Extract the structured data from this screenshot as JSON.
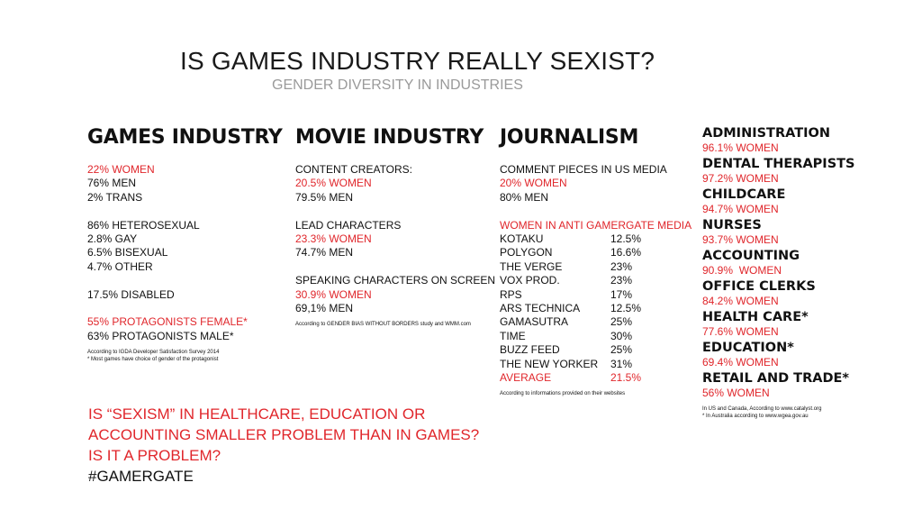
{
  "header": {
    "title": "IS GAMES INDUSTRY REALLY SEXIST?",
    "subtitle": "GENDER DIVERSITY IN INDUSTRIES"
  },
  "games": {
    "heading": "GAMES INDUSTRY",
    "women": "22% WOMEN",
    "men": "76% MEN",
    "trans": "2% TRANS",
    "hetero": "86% HETEROSEXUAL",
    "gay": "2.8% GAY",
    "bi": "6.5% BISEXUAL",
    "other": "4.7% OTHER",
    "disabled": "17.5% DISABLED",
    "prot_female": "55% PROTAGONISTS FEMALE*",
    "prot_male": "63% PROTAGONISTS MALE*",
    "note1": "According to IGDA Developer Satisfaction Survey 2014",
    "note2": "* Most games have choice of gender of the protagonist"
  },
  "movie": {
    "heading": "MOVIE INDUSTRY",
    "cc_label": "CONTENT CREATORS:",
    "cc_women": "20.5% WOMEN",
    "cc_men": "79.5% MEN",
    "lc_label": "LEAD CHARACTERS",
    "lc_women": "23.3% WOMEN",
    "lc_men": "74.7% MEN",
    "sc_label": "SPEAKING CHARACTERS ON SCREEN",
    "sc_women": "30.9% WOMEN",
    "sc_men": "69,1% MEN",
    "note": "According to GENDER BIAS WITHOUT BORDERS study and WMM.com"
  },
  "journalism": {
    "heading": "JOURNALISM",
    "comment_label": "COMMENT PIECES IN US MEDIA",
    "comment_women": "20% WOMEN",
    "comment_men": "80% MEN",
    "anti_label": "WOMEN IN ANTI GAMERGATE MEDIA",
    "outlets": [
      {
        "name": "KOTAKU",
        "value": "12.5%"
      },
      {
        "name": "POLYGON",
        "value": "16.6%"
      },
      {
        "name": "THE VERGE",
        "value": "23%"
      },
      {
        "name": "VOX PROD.",
        "value": "23%"
      },
      {
        "name": "RPS",
        "value": "17%"
      },
      {
        "name": "ARS TECHNICA",
        "value": "12.5%"
      },
      {
        "name": "GAMASUTRA",
        "value": "25%"
      },
      {
        "name": "TIME",
        "value": "30%"
      },
      {
        "name": "BUZZ FEED",
        "value": "25%"
      },
      {
        "name": "THE NEW YORKER",
        "value": "31%"
      }
    ],
    "average_label": "AVERAGE",
    "average_value": "21.5%",
    "note": "According to informations provided on their websites"
  },
  "other_industries": {
    "items": [
      {
        "name": "ADMINISTRATION",
        "value": "96.1% WOMEN"
      },
      {
        "name": "DENTAL THERAPISTS",
        "value": "97.2% WOMEN"
      },
      {
        "name": "CHILDCARE",
        "value": "94.7% WOMEN"
      },
      {
        "name": "NURSES",
        "value": "93.7% WOMEN"
      },
      {
        "name": "ACCOUNTING",
        "value": "90.9%  WOMEN"
      },
      {
        "name": "OFFICE CLERKS",
        "value": "84.2% WOMEN"
      },
      {
        "name": "HEALTH CARE*",
        "value": "77.6% WOMEN"
      },
      {
        "name": "EDUCATION*",
        "value": "69.4% WOMEN"
      },
      {
        "name": "RETAIL AND TRADE*",
        "value": "56% WOMEN"
      }
    ],
    "note1": "In US and Canada, According to www.catalyst.org",
    "note2": "* In Australia according to www.wgea.gov.au"
  },
  "question": {
    "line1": "IS “SEXISM” IN HEALTHCARE, EDUCATION OR",
    "line2": "ACCOUNTING SMALLER PROBLEM THAN IN GAMES?",
    "line3": "IS IT A PROBLEM?",
    "line4": "#GAMERGATE"
  },
  "colors": {
    "accent_red": "#e0262b",
    "text": "#111111",
    "subtitle_gray": "#9a9a9a"
  }
}
